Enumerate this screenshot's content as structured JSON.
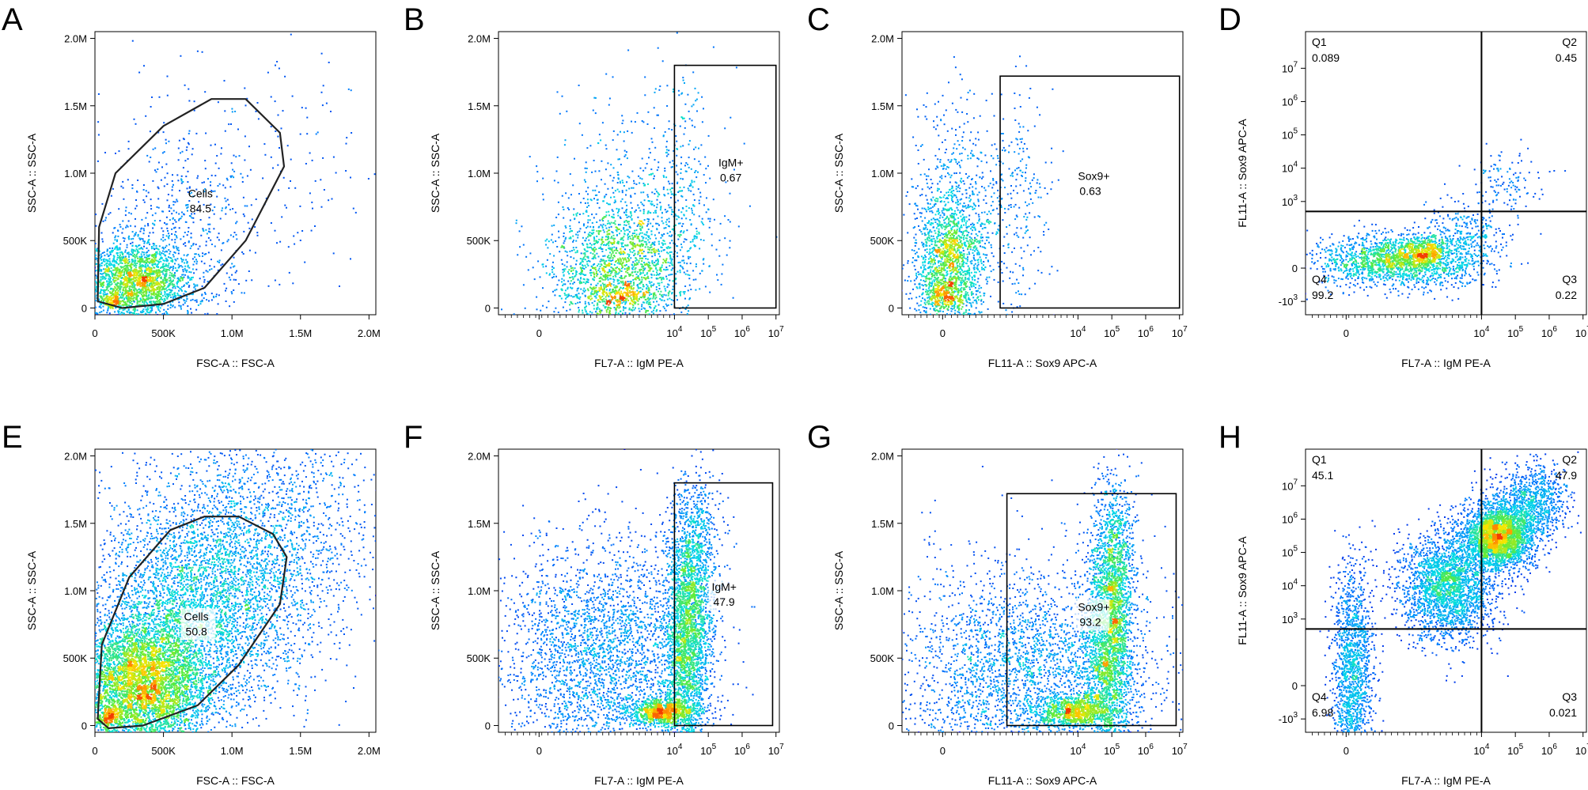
{
  "chart_data": [
    {
      "letter": "A",
      "type": "scatter",
      "kind": "linear",
      "xlabel": "FSC-A :: FSC-A",
      "ylabel": "SSC-A :: SSC-A",
      "xlim": [
        0,
        2.05
      ],
      "ylim": [
        -0.05,
        2.05
      ],
      "xticks": [
        "0",
        "500K",
        "1.0M",
        "1.5M",
        "2.0M"
      ],
      "yticks": [
        "0",
        "500K",
        "1.0M",
        "1.5M",
        "2.0M"
      ],
      "gate": {
        "type": "polygon",
        "points": [
          [
            0.02,
            0.05
          ],
          [
            0.03,
            0.6
          ],
          [
            0.15,
            1.0
          ],
          [
            0.5,
            1.35
          ],
          [
            0.85,
            1.55
          ],
          [
            1.1,
            1.55
          ],
          [
            1.35,
            1.3
          ],
          [
            1.38,
            1.05
          ],
          [
            1.1,
            0.5
          ],
          [
            0.8,
            0.15
          ],
          [
            0.5,
            0.03
          ],
          [
            0.2,
            0.0
          ]
        ],
        "label": "Cells",
        "value": "84.5",
        "labelPos": [
          0.68,
          0.82
        ]
      },
      "populations": [
        {
          "cx": 0.12,
          "cy": 0.05,
          "sx": 0.05,
          "sy": 0.03,
          "n": 120
        },
        {
          "cx": 0.3,
          "cy": 0.2,
          "sx": 0.2,
          "sy": 0.15,
          "n": 2200
        },
        {
          "cx": 0.6,
          "cy": 0.55,
          "sx": 0.3,
          "sy": 0.35,
          "n": 500
        },
        {
          "cx": 1.0,
          "cy": 1.1,
          "sx": 0.6,
          "sy": 0.5,
          "n": 220
        }
      ]
    },
    {
      "letter": "B",
      "type": "scatter",
      "kind": "flow",
      "xlabel": "FL7-A :: IgM PE-A",
      "ylabel": "SSC-A :: SSC-A",
      "xlim": [
        -1.2,
        7.1
      ],
      "ylim": [
        -0.05,
        2.05
      ],
      "xticks": [
        "0",
        "10^4",
        "10^5",
        "10^6",
        "10^7"
      ],
      "yticks": [
        "0",
        "500K",
        "1.0M",
        "1.5M",
        "2.0M"
      ],
      "gate": {
        "type": "rect",
        "x1": 4.0,
        "x2": 7.0,
        "y1": 0.0,
        "y2": 1.8,
        "label": "IgM+",
        "value": "0.67",
        "labelPos": [
          5.3,
          1.05
        ]
      },
      "populations": [
        {
          "cx": 2.4,
          "cy": 0.08,
          "sx": 0.6,
          "sy": 0.04,
          "n": 220
        },
        {
          "cx": 2.2,
          "cy": 0.3,
          "sx": 1.0,
          "sy": 0.25,
          "n": 1500
        },
        {
          "cx": 3.0,
          "cy": 0.6,
          "sx": 1.2,
          "sy": 0.5,
          "n": 700
        },
        {
          "cx": 4.1,
          "cy": 0.7,
          "sx": 0.5,
          "sy": 0.6,
          "n": 250
        }
      ]
    },
    {
      "letter": "C",
      "type": "scatter",
      "kind": "flow",
      "xlabel": "FL11-A :: Sox9 APC-A",
      "ylabel": "SSC-A :: SSC-A",
      "xlim": [
        -1.2,
        7.1
      ],
      "ylim": [
        -0.05,
        2.05
      ],
      "xticks": [
        "0",
        "10^4",
        "10^5",
        "10^6",
        "10^7"
      ],
      "yticks": [
        "0",
        "500K",
        "1.0M",
        "1.5M",
        "2.0M"
      ],
      "gate": {
        "type": "rect",
        "x1": 1.7,
        "x2": 7.0,
        "y1": 0.0,
        "y2": 1.72,
        "label": "Sox9+",
        "value": "0.63",
        "labelPos": [
          4.0,
          0.95
        ]
      },
      "populations": [
        {
          "cx": 0.1,
          "cy": 0.08,
          "sx": 0.3,
          "sy": 0.04,
          "n": 200
        },
        {
          "cx": 0.2,
          "cy": 0.3,
          "sx": 0.5,
          "sy": 0.25,
          "n": 1500
        },
        {
          "cx": 0.4,
          "cy": 0.7,
          "sx": 0.7,
          "sy": 0.4,
          "n": 600
        },
        {
          "cx": 2.2,
          "cy": 0.8,
          "sx": 0.5,
          "sy": 0.5,
          "n": 250
        }
      ]
    },
    {
      "letter": "D",
      "type": "scatter",
      "kind": "quadrant",
      "xlabel": "FL7-A :: IgM PE-A",
      "ylabel": "FL11-A :: Sox9 APC-A",
      "xlim": [
        -1.2,
        7.1
      ],
      "ylim": [
        -1.4,
        7.1
      ],
      "xticks": [
        "0",
        "10^4",
        "10^5",
        "10^6",
        "10^7"
      ],
      "yticks": [
        "-10^3",
        "0",
        "10^3",
        "10^4",
        "10^5",
        "10^6",
        "10^7"
      ],
      "quad": {
        "x": 4.0,
        "y": 1.7
      },
      "quadrants": [
        {
          "name": "Q1",
          "value": "0.089",
          "pos": "tl"
        },
        {
          "name": "Q2",
          "value": "0.45",
          "pos": "tr"
        },
        {
          "name": "Q3",
          "value": "0.22",
          "pos": "br"
        },
        {
          "name": "Q4",
          "value": "99.2",
          "pos": "bl"
        }
      ],
      "populations": [
        {
          "cx": 2.3,
          "cy": 0.5,
          "sx": 0.4,
          "sy": 0.25,
          "n": 400
        },
        {
          "cx": 1.5,
          "cy": 0.2,
          "sx": 1.2,
          "sy": 0.4,
          "n": 1800
        },
        {
          "cx": 3.5,
          "cy": 1.0,
          "sx": 0.6,
          "sy": 0.5,
          "n": 300
        },
        {
          "cx": 4.8,
          "cy": 2.6,
          "sx": 0.5,
          "sy": 0.5,
          "n": 120
        }
      ]
    },
    {
      "letter": "E",
      "type": "scatter",
      "kind": "linear",
      "xlabel": "FSC-A :: FSC-A",
      "ylabel": "SSC-A :: SSC-A",
      "xlim": [
        0,
        2.05
      ],
      "ylim": [
        -0.05,
        2.05
      ],
      "xticks": [
        "0",
        "500K",
        "1.0M",
        "1.5M",
        "2.0M"
      ],
      "yticks": [
        "0",
        "500K",
        "1.0M",
        "1.5M",
        "2.0M"
      ],
      "gate": {
        "type": "polygon",
        "points": [
          [
            0.02,
            0.05
          ],
          [
            0.05,
            0.6
          ],
          [
            0.25,
            1.1
          ],
          [
            0.55,
            1.45
          ],
          [
            0.8,
            1.55
          ],
          [
            1.05,
            1.55
          ],
          [
            1.3,
            1.42
          ],
          [
            1.4,
            1.25
          ],
          [
            1.35,
            0.9
          ],
          [
            1.05,
            0.45
          ],
          [
            0.75,
            0.15
          ],
          [
            0.35,
            0.0
          ],
          [
            0.1,
            -0.02
          ]
        ],
        "label": "Cells",
        "value": "50.8",
        "labelPos": [
          0.65,
          0.78
        ]
      },
      "populations": [
        {
          "cx": 0.1,
          "cy": 0.05,
          "sx": 0.05,
          "sy": 0.04,
          "n": 200
        },
        {
          "cx": 0.35,
          "cy": 0.3,
          "sx": 0.25,
          "sy": 0.25,
          "n": 5000
        },
        {
          "cx": 0.8,
          "cy": 0.9,
          "sx": 0.4,
          "sy": 0.4,
          "n": 3500
        },
        {
          "cx": 1.2,
          "cy": 1.5,
          "sx": 0.5,
          "sy": 0.4,
          "n": 1500
        }
      ]
    },
    {
      "letter": "F",
      "type": "scatter",
      "kind": "flow",
      "xlabel": "FL7-A :: IgM PE-A",
      "ylabel": "SSC-A :: SSC-A",
      "xlim": [
        -1.2,
        7.1
      ],
      "ylim": [
        -0.05,
        2.05
      ],
      "xticks": [
        "0",
        "10^4",
        "10^5",
        "10^6",
        "10^7"
      ],
      "yticks": [
        "0",
        "500K",
        "1.0M",
        "1.5M",
        "2.0M"
      ],
      "gate": {
        "type": "rect",
        "x1": 4.0,
        "x2": 6.9,
        "y1": 0.0,
        "y2": 1.8,
        "label": "IgM+",
        "value": "47.9",
        "labelPos": [
          5.1,
          1.0
        ]
      },
      "populations": [
        {
          "cx": 3.6,
          "cy": 0.1,
          "sx": 0.5,
          "sy": 0.05,
          "n": 900
        },
        {
          "cx": 4.4,
          "cy": 0.6,
          "sx": 0.35,
          "sy": 0.45,
          "n": 2200
        },
        {
          "cx": 4.6,
          "cy": 1.2,
          "sx": 0.4,
          "sy": 0.35,
          "n": 900
        },
        {
          "cx": 1.8,
          "cy": 0.5,
          "sx": 1.5,
          "sy": 0.45,
          "n": 3000
        }
      ]
    },
    {
      "letter": "G",
      "type": "scatter",
      "kind": "flow",
      "xlabel": "FL11-A :: Sox9 APC-A",
      "ylabel": "SSC-A :: SSC-A",
      "xlim": [
        -1.2,
        7.1
      ],
      "ylim": [
        -0.05,
        2.05
      ],
      "xticks": [
        "0",
        "10^4",
        "10^5",
        "10^6",
        "10^7"
      ],
      "yticks": [
        "0",
        "500K",
        "1.0M",
        "1.5M",
        "2.0M"
      ],
      "gate": {
        "type": "rect",
        "x1": 1.9,
        "x2": 6.9,
        "y1": 0.0,
        "y2": 1.72,
        "label": "Sox9+",
        "value": "93.2",
        "labelPos": [
          4.0,
          0.85
        ]
      },
      "populations": [
        {
          "cx": 3.9,
          "cy": 0.1,
          "sx": 0.6,
          "sy": 0.06,
          "n": 900
        },
        {
          "cx": 4.9,
          "cy": 0.6,
          "sx": 0.35,
          "sy": 0.45,
          "n": 2200
        },
        {
          "cx": 5.1,
          "cy": 1.2,
          "sx": 0.3,
          "sy": 0.35,
          "n": 900
        },
        {
          "cx": 2.5,
          "cy": 0.4,
          "sx": 2.0,
          "sy": 0.4,
          "n": 3000
        }
      ]
    },
    {
      "letter": "H",
      "type": "scatter",
      "kind": "quadrant",
      "xlabel": "FL7-A :: IgM PE-A",
      "ylabel": "FL11-A :: Sox9 APC-A",
      "xlim": [
        -1.2,
        7.1
      ],
      "ylim": [
        -1.4,
        7.1
      ],
      "xticks": [
        "0",
        "10^4",
        "10^5",
        "10^6",
        "10^7"
      ],
      "yticks": [
        "-10^3",
        "0",
        "10^3",
        "10^4",
        "10^5",
        "10^6",
        "10^7"
      ],
      "quad": {
        "x": 4.0,
        "y": 1.7
      },
      "quadrants": [
        {
          "name": "Q1",
          "value": "45.1",
          "pos": "tl"
        },
        {
          "name": "Q2",
          "value": "47.9",
          "pos": "tr"
        },
        {
          "name": "Q3",
          "value": "0.021",
          "pos": "br"
        },
        {
          "name": "Q4",
          "value": "6.98",
          "pos": "bl"
        }
      ],
      "populations": [
        {
          "cx": 4.5,
          "cy": 4.5,
          "sx": 0.5,
          "sy": 0.5,
          "n": 2800
        },
        {
          "cx": 3.0,
          "cy": 3.0,
          "sx": 0.7,
          "sy": 0.8,
          "n": 2500
        },
        {
          "cx": 0.2,
          "cy": 0.5,
          "sx": 0.3,
          "sy": 1.5,
          "n": 1500
        },
        {
          "cx": 5.5,
          "cy": 5.5,
          "sx": 0.5,
          "sy": 0.6,
          "n": 900
        }
      ]
    }
  ]
}
